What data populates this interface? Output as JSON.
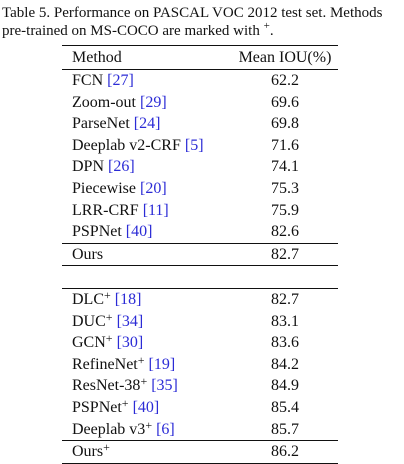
{
  "caption": {
    "line1": "Table 5. Performance on PASCAL VOC 2012 test set.  Methods",
    "line2": "pre-trained on MS-COCO are marked with",
    "marker": "+",
    "period": "."
  },
  "table": {
    "headers": {
      "method": "Method",
      "iou": "Mean IOU(%)"
    },
    "group1": [
      {
        "name": "FCN",
        "cite": "[27]",
        "value": "62.2"
      },
      {
        "name": "Zoom-out",
        "cite": "[29]",
        "value": "69.6"
      },
      {
        "name": "ParseNet",
        "cite": "[24]",
        "value": "69.8"
      },
      {
        "name": "Deeplab v2-CRF",
        "cite": "[5]",
        "value": "71.6"
      },
      {
        "name": "DPN",
        "cite": "[26]",
        "value": "74.1"
      },
      {
        "name": "Piecewise",
        "cite": "[20]",
        "value": "75.3"
      },
      {
        "name": "LRR-CRF",
        "cite": "[11]",
        "value": "75.9"
      },
      {
        "name": "PSPNet",
        "cite": "[40]",
        "value": "82.6"
      }
    ],
    "ours1": {
      "name": "Ours",
      "value": "82.7"
    },
    "group2": [
      {
        "name": "DLC",
        "sup": "+",
        "cite": "[18]",
        "value": "82.7"
      },
      {
        "name": "DUC",
        "sup": "+",
        "cite": "[34]",
        "value": "83.1"
      },
      {
        "name": "GCN",
        "sup": "+",
        "cite": "[30]",
        "value": "83.6"
      },
      {
        "name": "RefineNet",
        "sup": "+",
        "cite": "[19]",
        "value": "84.2"
      },
      {
        "name": "ResNet-38",
        "sup": "+",
        "cite": "[35]",
        "value": "84.9"
      },
      {
        "name": "PSPNet",
        "sup": "+",
        "cite": "[40]",
        "value": "85.4"
      },
      {
        "name": "Deeplab v3",
        "sup": "+",
        "cite": "[6]",
        "value": "85.7"
      }
    ],
    "ours2": {
      "name": "Ours",
      "sup": "+",
      "value": "86.2"
    }
  },
  "colors": {
    "text": "#111111",
    "citation": "#2b2bd6"
  }
}
